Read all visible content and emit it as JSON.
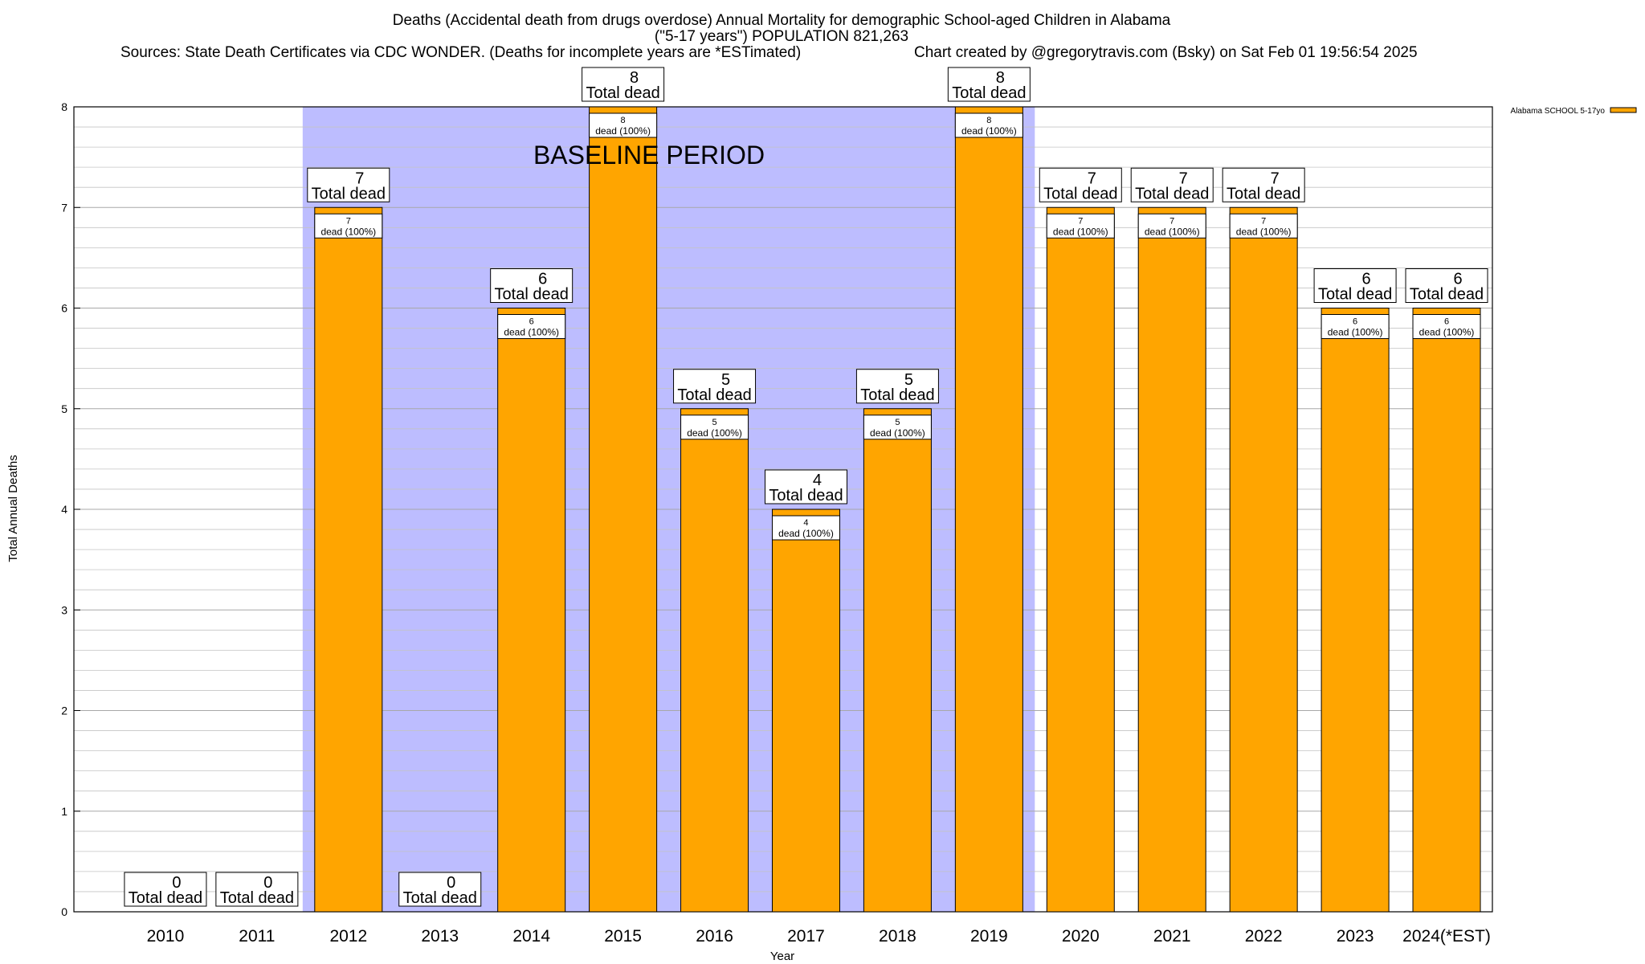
{
  "chart_data": {
    "type": "bar",
    "title": "Deaths (Accidental death from drugs overdose) Annual Mortality for demographic School-aged Children in Alabama",
    "subtitle": "(\"5-17 years\") POPULATION 821,263",
    "sources": "Sources: State Death Certificates via CDC WONDER. (Deaths for incomplete years are *ESTimated)",
    "credit": "Chart created by @gregorytravis.com (Bsky) on Sat Feb 01 19:56:54 2025",
    "xlabel": "Year",
    "ylabel": "Total Annual Deaths",
    "ylim": [
      0,
      8
    ],
    "yticks": [
      0,
      1,
      2,
      3,
      4,
      5,
      6,
      7,
      8
    ],
    "grid": true,
    "legend_position": "top-right",
    "categories": [
      "2010",
      "2011",
      "2012",
      "2013",
      "2014",
      "2015",
      "2016",
      "2017",
      "2018",
      "2019",
      "2020",
      "2021",
      "2022",
      "2023",
      "2024(*EST)"
    ],
    "series": [
      {
        "name": "Alabama SCHOOL 5-17yo",
        "color": "#FFA500",
        "values": [
          0,
          0,
          7,
          0,
          6,
          8,
          5,
          4,
          5,
          8,
          7,
          7,
          7,
          6,
          6
        ]
      }
    ],
    "total_label_suffix": "Total dead",
    "inner_label_suffix": "dead (100%)",
    "baseline": {
      "label": "BASELINE PERIOD",
      "from": "2012",
      "to": "2019",
      "color": "#BDBDFF"
    }
  }
}
